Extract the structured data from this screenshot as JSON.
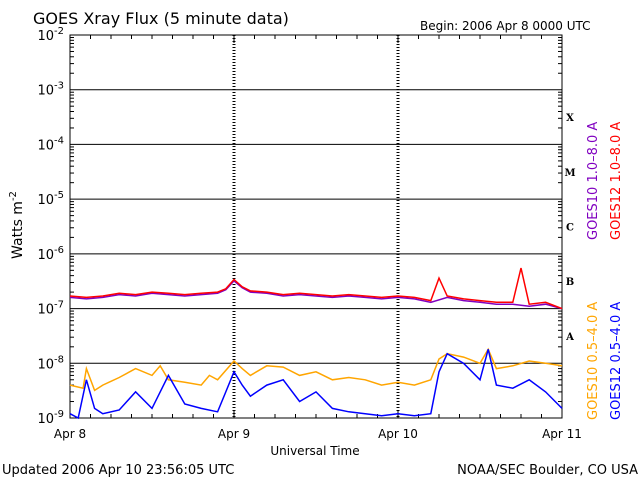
{
  "chart_data": {
    "type": "line",
    "title": "GOES Xray Flux (5 minute data)",
    "begin_label": "Begin:  2006 Apr 8 0000 UTC",
    "xlabel": "Universal Time",
    "ylabel": "Watts m",
    "ylabel_sup": "-2",
    "y_scale": "log",
    "ylim": [
      1e-09,
      0.01
    ],
    "y_ticks": [
      {
        "exp": "-2",
        "value": 0.01
      },
      {
        "exp": "-3",
        "value": 0.001
      },
      {
        "exp": "-4",
        "value": 0.0001
      },
      {
        "exp": "-5",
        "value": 1e-05
      },
      {
        "exp": "-6",
        "value": 1e-06
      },
      {
        "exp": "-7",
        "value": 1e-07
      },
      {
        "exp": "-8",
        "value": 1e-08
      },
      {
        "exp": "-9",
        "value": 1e-09
      }
    ],
    "x_ticks": [
      {
        "label": "Apr 8",
        "day": 0
      },
      {
        "label": "Apr 9",
        "day": 1
      },
      {
        "label": "Apr 10",
        "day": 2
      },
      {
        "label": "Apr 11",
        "day": 3
      }
    ],
    "flare_classes": [
      {
        "label": "X",
        "value": 0.000316
      },
      {
        "label": "M",
        "value": 3.16e-05
      },
      {
        "label": "C",
        "value": 3.16e-06
      },
      {
        "label": "B",
        "value": 3.16e-07
      },
      {
        "label": "A",
        "value": 3.16e-08
      }
    ],
    "grid": true,
    "series": [
      {
        "name": "GOES10 1.0–8.0 A",
        "color": "#8000c0",
        "x": [
          0.0,
          0.1,
          0.2,
          0.3,
          0.4,
          0.5,
          0.6,
          0.7,
          0.8,
          0.9,
          0.95,
          1.0,
          1.05,
          1.1,
          1.2,
          1.3,
          1.4,
          1.5,
          1.6,
          1.7,
          1.8,
          1.9,
          2.0,
          2.1,
          2.2,
          2.3,
          2.4,
          2.5,
          2.6,
          2.7,
          2.8,
          2.9,
          3.0
        ],
        "values": [
          1.6e-07,
          1.5e-07,
          1.6e-07,
          1.8e-07,
          1.7e-07,
          1.9e-07,
          1.8e-07,
          1.7e-07,
          1.8e-07,
          1.9e-07,
          2.2e-07,
          3.2e-07,
          2.4e-07,
          2e-07,
          1.9e-07,
          1.7e-07,
          1.8e-07,
          1.7e-07,
          1.6e-07,
          1.7e-07,
          1.6e-07,
          1.5e-07,
          1.6e-07,
          1.5e-07,
          1.3e-07,
          1.6e-07,
          1.4e-07,
          1.3e-07,
          1.2e-07,
          1.2e-07,
          1.1e-07,
          1.2e-07,
          1e-07
        ]
      },
      {
        "name": "GOES12 1.0–8.0 A",
        "color": "#ff0000",
        "x": [
          0.0,
          0.1,
          0.2,
          0.3,
          0.4,
          0.5,
          0.6,
          0.7,
          0.8,
          0.9,
          0.95,
          1.0,
          1.05,
          1.1,
          1.2,
          1.3,
          1.4,
          1.5,
          1.6,
          1.7,
          1.8,
          1.9,
          2.0,
          2.1,
          2.2,
          2.25,
          2.3,
          2.4,
          2.5,
          2.6,
          2.7,
          2.75,
          2.8,
          2.9,
          3.0
        ],
        "values": [
          1.7e-07,
          1.6e-07,
          1.7e-07,
          1.9e-07,
          1.8e-07,
          2e-07,
          1.9e-07,
          1.8e-07,
          1.9e-07,
          2e-07,
          2.3e-07,
          3.4e-07,
          2.5e-07,
          2.1e-07,
          2e-07,
          1.8e-07,
          1.9e-07,
          1.8e-07,
          1.7e-07,
          1.8e-07,
          1.7e-07,
          1.6e-07,
          1.7e-07,
          1.6e-07,
          1.4e-07,
          3.6e-07,
          1.7e-07,
          1.5e-07,
          1.4e-07,
          1.3e-07,
          1.3e-07,
          5.5e-07,
          1.2e-07,
          1.3e-07,
          1e-07
        ]
      },
      {
        "name": "GOES10 0.5–4.0 A",
        "color": "#ffa500",
        "x": [
          0.0,
          0.08,
          0.1,
          0.15,
          0.2,
          0.3,
          0.4,
          0.5,
          0.55,
          0.6,
          0.7,
          0.8,
          0.85,
          0.9,
          1.0,
          1.05,
          1.1,
          1.2,
          1.3,
          1.4,
          1.5,
          1.6,
          1.7,
          1.8,
          1.9,
          2.0,
          2.1,
          2.2,
          2.25,
          2.3,
          2.4,
          2.5,
          2.55,
          2.6,
          2.7,
          2.8,
          2.9,
          3.0
        ],
        "values": [
          4e-09,
          3.5e-09,
          8e-09,
          3.2e-09,
          4e-09,
          5.5e-09,
          8e-09,
          6e-09,
          9e-09,
          5e-09,
          4.5e-09,
          4e-09,
          6e-09,
          5e-09,
          1.1e-08,
          8e-09,
          6e-09,
          9e-09,
          8.5e-09,
          6e-09,
          7e-09,
          5e-09,
          5.5e-09,
          5e-09,
          4e-09,
          4.5e-09,
          4e-09,
          5e-09,
          1.2e-08,
          1.5e-08,
          1.3e-08,
          1e-08,
          1.8e-08,
          8e-09,
          9e-09,
          1.1e-08,
          1e-08,
          9e-09
        ]
      },
      {
        "name": "GOES12 0.5–4.0 A",
        "color": "#0000ff",
        "x": [
          0.0,
          0.05,
          0.1,
          0.15,
          0.2,
          0.3,
          0.4,
          0.5,
          0.6,
          0.7,
          0.8,
          0.9,
          0.95,
          1.0,
          1.05,
          1.1,
          1.2,
          1.3,
          1.4,
          1.5,
          1.6,
          1.7,
          1.8,
          1.9,
          2.0,
          2.1,
          2.2,
          2.25,
          2.3,
          2.4,
          2.5,
          2.55,
          2.6,
          2.7,
          2.8,
          2.9,
          3.0
        ],
        "values": [
          1.2e-09,
          1e-09,
          5e-09,
          1.5e-09,
          1.2e-09,
          1.4e-09,
          3e-09,
          1.5e-09,
          6e-09,
          1.8e-09,
          1.5e-09,
          1.3e-09,
          3e-09,
          7e-09,
          4e-09,
          2.5e-09,
          4e-09,
          5e-09,
          2e-09,
          3e-09,
          1.5e-09,
          1.3e-09,
          1.2e-09,
          1.1e-09,
          1.2e-09,
          1.1e-09,
          1.2e-09,
          7e-09,
          1.5e-08,
          1e-08,
          5e-09,
          1.8e-08,
          4e-09,
          3.5e-09,
          5e-09,
          3e-09,
          1.5e-09
        ]
      }
    ]
  },
  "footer": {
    "updated": "Updated 2006 Apr 10 23:56:05 UTC",
    "credit": "NOAA/SEC Boulder, CO USA"
  }
}
